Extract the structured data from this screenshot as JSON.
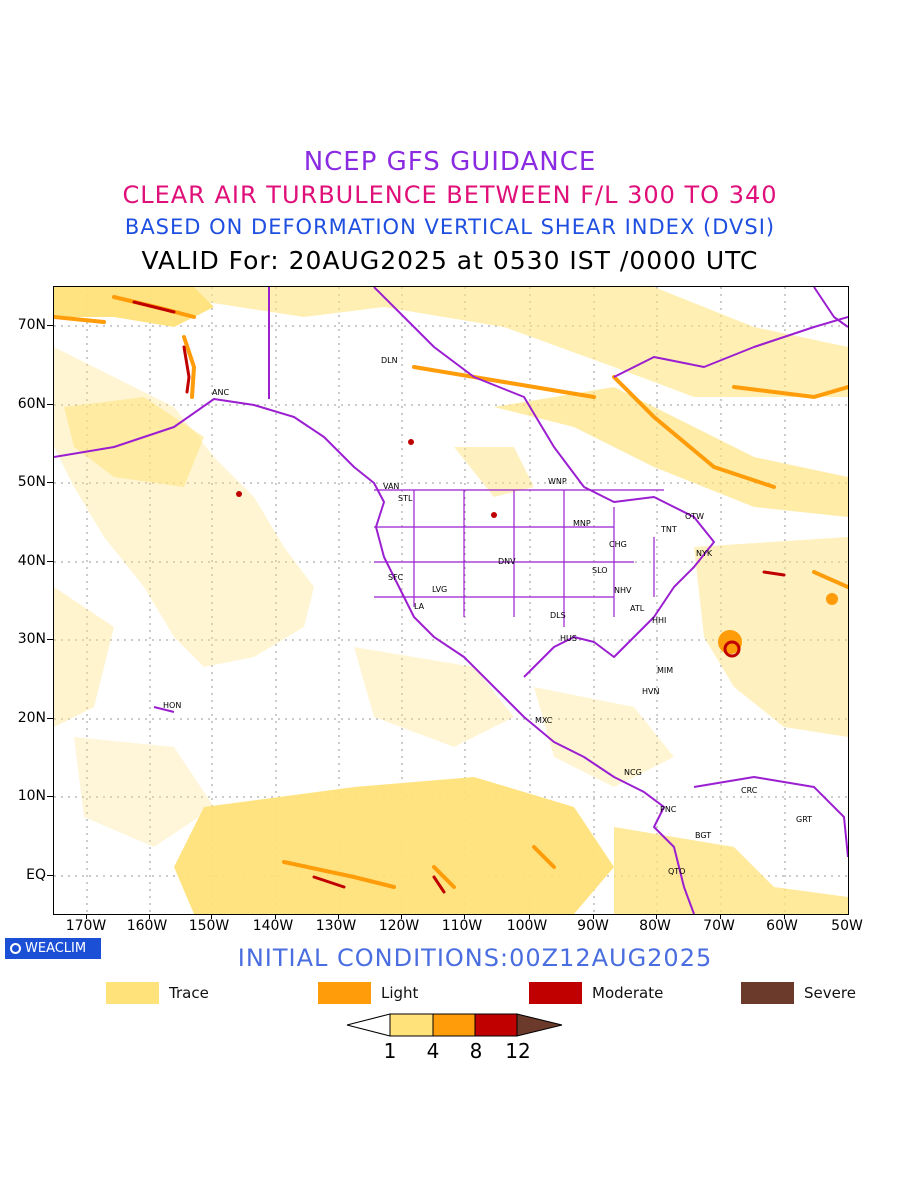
{
  "titles": {
    "line1": "NCEP GFS GUIDANCE",
    "line2": "CLEAR AIR TURBULENCE BETWEEN F/L 300 TO 340",
    "line3": "BASED ON DEFORMATION VERTICAL SHEAR INDEX (DVSI)",
    "line4": "VALID For: 20AUG2025 at 0530 IST /0000 UTC"
  },
  "map": {
    "lat_labels": [
      "70N",
      "60N",
      "50N",
      "40N",
      "30N",
      "20N",
      "10N",
      "EQ"
    ],
    "lon_labels": [
      "170W",
      "160W",
      "150W",
      "140W",
      "130W",
      "120W",
      "110W",
      "100W",
      "90W",
      "80W",
      "70W",
      "60W",
      "50W"
    ],
    "cities": [
      {
        "name": "DLN"
      },
      {
        "name": "ANC"
      },
      {
        "name": "VAN"
      },
      {
        "name": "STL"
      },
      {
        "name": "WNP"
      },
      {
        "name": "MNP"
      },
      {
        "name": "TNT"
      },
      {
        "name": "OTW"
      },
      {
        "name": "CHG"
      },
      {
        "name": "NYK"
      },
      {
        "name": "DNV"
      },
      {
        "name": "SFC"
      },
      {
        "name": "SLO"
      },
      {
        "name": "LVG"
      },
      {
        "name": "NHV"
      },
      {
        "name": "LA"
      },
      {
        "name": "ATL"
      },
      {
        "name": "DLS"
      },
      {
        "name": "HHI"
      },
      {
        "name": "HUS"
      },
      {
        "name": "MIM"
      },
      {
        "name": "HON"
      },
      {
        "name": "HVN"
      },
      {
        "name": "MXC"
      },
      {
        "name": "NCG"
      },
      {
        "name": "CRC"
      },
      {
        "name": "PNC"
      },
      {
        "name": "GRT"
      },
      {
        "name": "BGT"
      },
      {
        "name": "QTO"
      }
    ],
    "colors": {
      "trace": "#ffe27a",
      "light": "#ff9c0a",
      "moderate": "#c00000",
      "severe": "#6b3a2b",
      "borders": "#9b1fd1",
      "grid": "#999999"
    }
  },
  "badge": {
    "text": "WEACLIM",
    "icon": "circle-logo-icon"
  },
  "initial_conditions": "INITIAL CONDITIONS:00Z12AUG2025",
  "legend": [
    {
      "label": "Trace",
      "color": "#ffe27a"
    },
    {
      "label": "Light",
      "color": "#ff9c0a"
    },
    {
      "label": "Moderate",
      "color": "#c00000"
    },
    {
      "label": "Severe",
      "color": "#6b3a2b"
    }
  ],
  "colorbar": {
    "labels": [
      "1",
      "4",
      "8",
      "12"
    ],
    "colors": [
      "#ffffff",
      "#ffe27a",
      "#ff9c0a",
      "#c00000",
      "#6b3a2b"
    ]
  }
}
